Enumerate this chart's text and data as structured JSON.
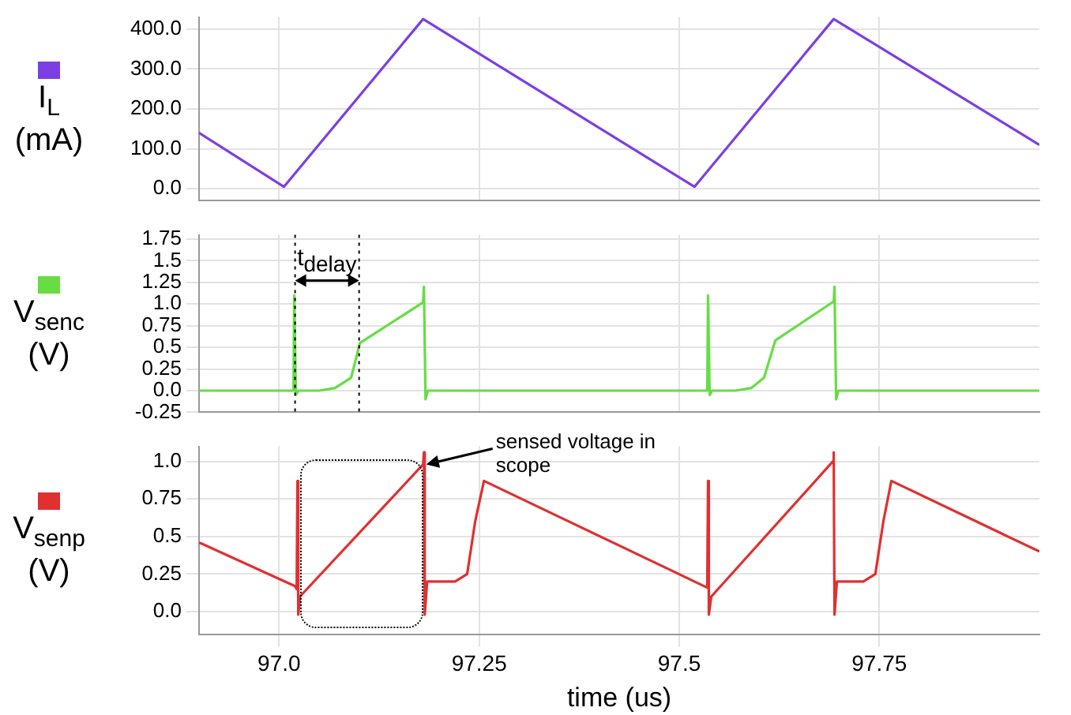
{
  "chart_data": [
    {
      "type": "line",
      "ylabel": "I$_{L}$ (mA)",
      "marker": "none",
      "line_style": "solid",
      "grid": true,
      "tick_labels": "y",
      "xlim": [
        96.9,
        97.95
      ],
      "ylim": [
        -30,
        430
      ],
      "yticks": [
        {
          "value": 0,
          "label": "0.0"
        },
        {
          "value": 100,
          "label": "100.0"
        },
        {
          "value": 200,
          "label": "200.0"
        },
        {
          "value": 300,
          "label": "300.0"
        },
        {
          "value": 400,
          "label": "400.0"
        }
      ],
      "series": [
        {
          "color": "#7b3fe4",
          "x": [
            96.9,
            97.006,
            97.18,
            97.519,
            97.693,
            97.95
          ],
          "values": [
            140,
            5,
            425,
            5,
            425,
            110
          ]
        }
      ]
    },
    {
      "type": "line",
      "ylabel": "V$_{senc}$ (V)",
      "marker": "none",
      "line_style": "solid",
      "grid": true,
      "tick_labels": "y",
      "xlim": [
        96.9,
        97.95
      ],
      "ylim": [
        -0.25,
        1.8
      ],
      "yticks": [
        -0.25,
        {
          "value": 0,
          "label": "0.0"
        },
        0.25,
        0.5,
        0.75,
        {
          "value": 1,
          "label": "1.0"
        },
        1.25,
        1.5,
        1.75
      ],
      "ref_lines": [
        {
          "axis": "x",
          "value": 97.02,
          "label": "t$_{delay}$",
          "color": "#000000",
          "line_style": "dotted"
        },
        {
          "axis": "x",
          "value": 97.1,
          "color": "#000000",
          "line_style": "dotted"
        }
      ],
      "series": [
        {
          "color": "#66dd44",
          "x": [
            96.9,
            97.018,
            97.019,
            97.021,
            97.024,
            97.05,
            97.07,
            97.09,
            97.101,
            97.18,
            97.181,
            97.183,
            97.186,
            97.535,
            97.536,
            97.538,
            97.541,
            97.57,
            97.59,
            97.606,
            97.62,
            97.693,
            97.694,
            97.696,
            97.699,
            97.95
          ],
          "values": [
            0,
            0,
            1.1,
            -0.05,
            0,
            0,
            0.03,
            0.15,
            0.55,
            1.02,
            1.2,
            -0.1,
            0,
            0,
            1.1,
            -0.05,
            0,
            0,
            0.03,
            0.15,
            0.58,
            1.03,
            1.2,
            -0.1,
            0,
            0
          ]
        }
      ]
    },
    {
      "type": "line",
      "ylabel": "V$_{senp}$ (V)",
      "xlabel": "time (us)",
      "marker": "none",
      "line_style": "solid",
      "grid": true,
      "xlim": [
        96.9,
        97.95
      ],
      "xticks": [
        {
          "value": 97,
          "label": "97.0"
        },
        97.25,
        {
          "value": 97.5,
          "label": "97.5"
        },
        97.75
      ],
      "ylim": [
        -0.15,
        1.1
      ],
      "yticks": [
        {
          "value": 0,
          "label": "0.0"
        },
        0.25,
        0.5,
        0.75,
        {
          "value": 1,
          "label": "1.0"
        }
      ],
      "annotations": [
        {
          "text": "sensed voltage in scope",
          "x": 97.18,
          "y": 0.98
        }
      ],
      "series": [
        {
          "color": "#e03030",
          "x": [
            96.9,
            97.02,
            97.022,
            97.023,
            97.024,
            97.026,
            97.18,
            97.181,
            97.182,
            97.185,
            97.22,
            97.235,
            97.245,
            97.256,
            97.535,
            97.536,
            97.537,
            97.54,
            97.692,
            97.693,
            97.694,
            97.697,
            97.73,
            97.745,
            97.755,
            97.765,
            97.95
          ],
          "values": [
            0.46,
            0.17,
            0.15,
            0.87,
            -0.02,
            0.1,
            0.98,
            1.06,
            -0.02,
            0.2,
            0.2,
            0.25,
            0.6,
            0.87,
            0.16,
            0.87,
            -0.02,
            0.1,
            1.0,
            1.06,
            -0.02,
            0.2,
            0.2,
            0.25,
            0.6,
            0.87,
            0.4
          ]
        }
      ]
    }
  ]
}
